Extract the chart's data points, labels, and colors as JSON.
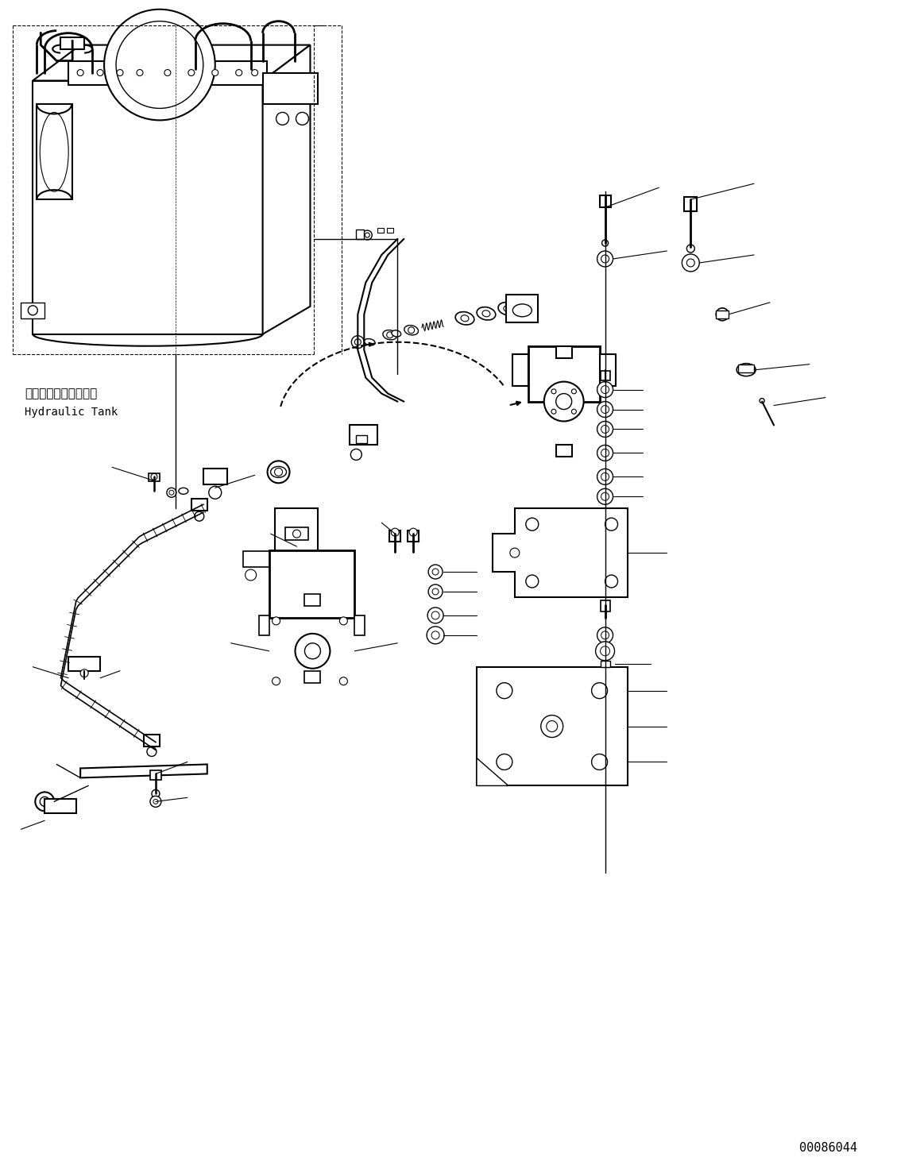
{
  "bg_color": "#ffffff",
  "line_color": "#000000",
  "text_color": "#000000",
  "part_number": "00086044",
  "label_tank_jp": "ハイドロリックタンク",
  "label_tank_en": "Hydraulic Tank",
  "figsize": [
    11.63,
    14.67
  ],
  "dpi": 100
}
